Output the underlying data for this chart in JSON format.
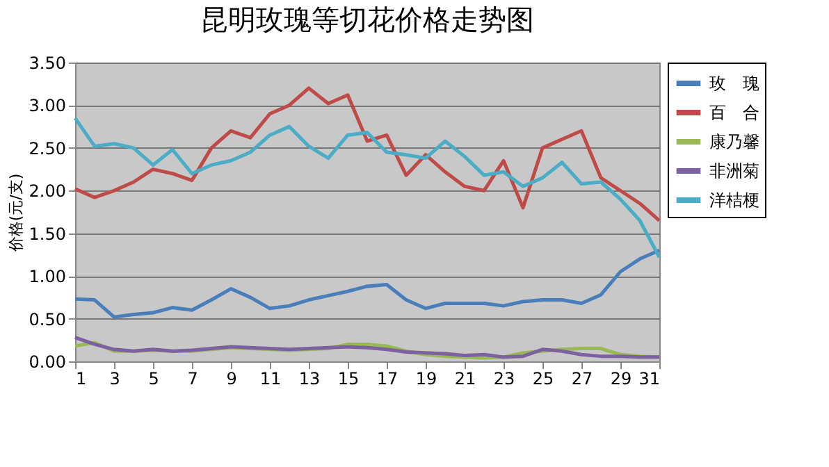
{
  "chart_data": {
    "type": "line",
    "title": "昆明玫瑰等切花价格走势图",
    "ylabel": "价格(元/支)",
    "x": [
      1,
      2,
      3,
      4,
      5,
      6,
      7,
      8,
      9,
      10,
      11,
      12,
      13,
      14,
      15,
      16,
      17,
      18,
      19,
      20,
      21,
      22,
      23,
      24,
      25,
      26,
      27,
      28,
      29,
      30,
      31
    ],
    "xlim": [
      1,
      31
    ],
    "xticks": [
      1,
      3,
      5,
      7,
      9,
      11,
      13,
      15,
      17,
      19,
      21,
      23,
      25,
      27,
      29,
      31
    ],
    "ylim": [
      0,
      3.5
    ],
    "yticks": [
      {
        "value": 0,
        "label": "0.00"
      },
      {
        "value": 0.5,
        "label": "0.50"
      },
      {
        "value": 1,
        "label": "1.00"
      },
      {
        "value": 1.5,
        "label": "1.50"
      },
      {
        "value": 2,
        "label": "2.00"
      },
      {
        "value": 2.5,
        "label": "2.50"
      },
      {
        "value": 3,
        "label": "3.00"
      },
      {
        "value": 3.5,
        "label": "3.50"
      }
    ],
    "grid": "y",
    "legend": "top right",
    "marker": "none",
    "line_style": "solid",
    "series": [
      {
        "name": "玫　瑰",
        "color": "#4a7ebb",
        "values": [
          0.73,
          0.72,
          0.52,
          0.55,
          0.57,
          0.63,
          0.6,
          0.72,
          0.85,
          0.75,
          0.62,
          0.65,
          0.72,
          0.77,
          0.82,
          0.88,
          0.9,
          0.72,
          0.62,
          0.68,
          0.68,
          0.68,
          0.65,
          0.7,
          0.72,
          0.72,
          0.68,
          0.78,
          1.05,
          1.2,
          1.3
        ]
      },
      {
        "name": "百　合",
        "color": "#be4b48",
        "values": [
          2.02,
          1.92,
          2.0,
          2.1,
          2.25,
          2.2,
          2.12,
          2.5,
          2.7,
          2.62,
          2.9,
          3.0,
          3.2,
          3.02,
          3.12,
          2.58,
          2.65,
          2.18,
          2.42,
          2.22,
          2.05,
          2.0,
          2.35,
          1.8,
          2.5,
          2.6,
          2.7,
          2.15,
          2.0,
          1.85,
          1.65
        ]
      },
      {
        "name": "康乃馨",
        "color": "#98b954",
        "values": [
          0.18,
          0.22,
          0.12,
          0.12,
          0.13,
          0.12,
          0.12,
          0.14,
          0.16,
          0.15,
          0.14,
          0.13,
          0.14,
          0.15,
          0.2,
          0.2,
          0.18,
          0.12,
          0.08,
          0.06,
          0.05,
          0.04,
          0.05,
          0.1,
          0.12,
          0.14,
          0.15,
          0.15,
          0.08,
          0.06,
          0.05
        ]
      },
      {
        "name": "非洲菊",
        "color": "#7d60a0",
        "values": [
          0.28,
          0.2,
          0.14,
          0.12,
          0.14,
          0.12,
          0.13,
          0.15,
          0.17,
          0.16,
          0.15,
          0.14,
          0.15,
          0.16,
          0.17,
          0.16,
          0.14,
          0.11,
          0.1,
          0.09,
          0.07,
          0.08,
          0.05,
          0.06,
          0.14,
          0.12,
          0.08,
          0.06,
          0.06,
          0.05,
          0.05
        ]
      },
      {
        "name": "洋桔梗",
        "color": "#4bacc6",
        "values": [
          2.85,
          2.52,
          2.55,
          2.5,
          2.3,
          2.48,
          2.2,
          2.3,
          2.35,
          2.45,
          2.65,
          2.75,
          2.52,
          2.38,
          2.65,
          2.68,
          2.45,
          2.42,
          2.38,
          2.58,
          2.4,
          2.18,
          2.22,
          2.05,
          2.15,
          2.33,
          2.08,
          2.1,
          1.9,
          1.65,
          1.22
        ]
      }
    ]
  }
}
